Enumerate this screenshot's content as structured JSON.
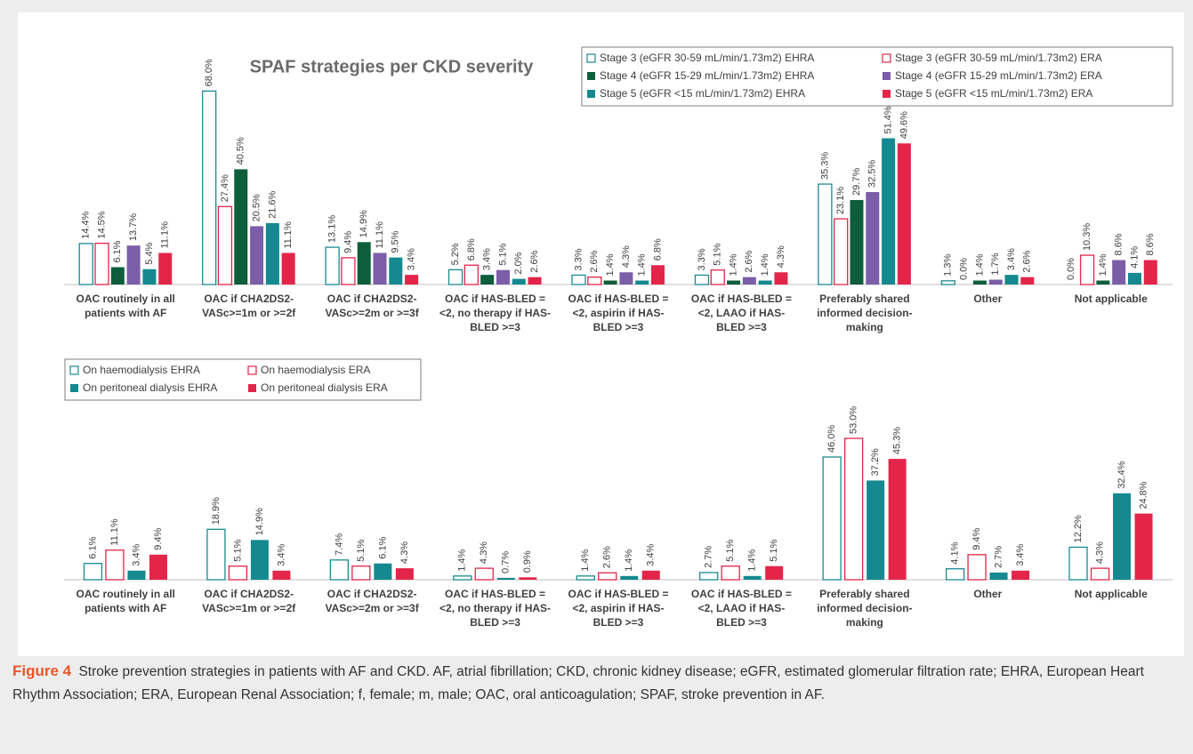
{
  "chart_data": [
    {
      "type": "bar",
      "title": "SPAF strategies per CKD severity",
      "legend": "upper right",
      "categories": [
        "OAC routinely in all patients with AF",
        "OAC if CHA2DS2-VASc>=1m or >=2f",
        "OAC if CHA2DS2-VASc>=2m or >=3f",
        "OAC if HAS-BLED =<2, no therapy if HAS-BLED >=3",
        "OAC if HAS-BLED =<2, aspirin if HAS-BLED >=3",
        "OAC if HAS-BLED =<2, LAAO if HAS-BLED >=3",
        "Preferably shared informed decision-making",
        "Other",
        "Not applicable"
      ],
      "series": [
        {
          "name": "Stage 3 (eGFR 30-59 mL/min/1.73m2) EHRA",
          "color": "#1a8a92",
          "hollow": true,
          "values": [
            14.4,
            68.0,
            13.1,
            5.2,
            3.3,
            3.3,
            35.3,
            1.3,
            0.0
          ],
          "value_labels": [
            "14.4%",
            "68.0%",
            "13.1%",
            "5.2%",
            "3.3%",
            "3.3%",
            "35.3%",
            "1.3%",
            "0.0%"
          ]
        },
        {
          "name": "Stage 3 (eGFR 30-59 mL/min/1.73m2) ERA",
          "color": "#e3254a",
          "hollow": true,
          "values": [
            14.5,
            27.4,
            9.4,
            6.8,
            2.6,
            5.1,
            23.1,
            0.0,
            10.3
          ],
          "value_labels": [
            "14.5%",
            "27.4%",
            "9.4%",
            "6.8%",
            "2.6%",
            "5.1%",
            "23.1%",
            "0.0%",
            "10.3%"
          ]
        },
        {
          "name": "Stage 4 (eGFR 15-29 mL/min/1.73m2) EHRA",
          "color": "#0e5e3c",
          "hollow": false,
          "values": [
            6.1,
            40.5,
            14.9,
            3.4,
            1.4,
            1.4,
            29.7,
            1.4,
            1.4
          ],
          "value_labels": [
            "6.1%",
            "40.5%",
            "14.9%",
            "3.4%",
            "1.4%",
            "1.4%",
            "29.7%",
            "1.4%",
            "1.4%"
          ]
        },
        {
          "name": "Stage 4 (eGFR 15-29 mL/min/1.73m2) ERA",
          "color": "#7b5ea7",
          "hollow": false,
          "values": [
            13.7,
            20.5,
            11.1,
            5.1,
            4.3,
            2.6,
            32.5,
            1.7,
            8.6
          ],
          "value_labels": [
            "13.7%",
            "20.5%",
            "11.1%",
            "5.1%",
            "4.3%",
            "2.6%",
            "32.5%",
            "1.7%",
            "8.6%"
          ]
        },
        {
          "name": "Stage 5 (eGFR <15 mL/min/1.73m2) EHRA",
          "color": "#14898f",
          "hollow": false,
          "values": [
            5.4,
            21.6,
            9.5,
            2.0,
            1.4,
            1.4,
            51.4,
            3.4,
            4.1
          ],
          "value_labels": [
            "5.4%",
            "21.6%",
            "9.5%",
            "2.0%",
            "1.4%",
            "1.4%",
            "51.4%",
            "3.4%",
            "4.1%"
          ]
        },
        {
          "name": "Stage 5 (eGFR <15 mL/min/1.73m2) ERA",
          "color": "#e3254a",
          "hollow": false,
          "values": [
            11.1,
            11.1,
            3.4,
            2.6,
            6.8,
            4.3,
            49.6,
            2.6,
            8.6
          ],
          "value_labels": [
            "11.1%",
            "11.1%",
            "3.4%",
            "2.6%",
            "6.8%",
            "4.3%",
            "49.6%",
            "2.6%",
            "8.6%"
          ]
        }
      ]
    },
    {
      "type": "bar",
      "legend": "upper left",
      "categories": [
        "OAC routinely in all patients with AF",
        "OAC if CHA2DS2-VASc>=1m or >=2f",
        "OAC if CHA2DS2-VASc>=2m or >=3f",
        "OAC if HAS-BLED =<2, no therapy if HAS-BLED >=3",
        "OAC if HAS-BLED =<2, aspirin if HAS-BLED >=3",
        "OAC if HAS-BLED =<2, LAAO if HAS-BLED >=3",
        "Preferably shared informed decision-making",
        "Other",
        "Not applicable"
      ],
      "series": [
        {
          "name": "On haemodialysis EHRA",
          "color": "#1a8a92",
          "hollow": true,
          "values": [
            6.1,
            18.9,
            7.4,
            1.4,
            1.4,
            2.7,
            46.0,
            4.1,
            12.2
          ],
          "value_labels": [
            "6.1%",
            "18.9%",
            "7.4%",
            "1.4%",
            "1.4%",
            "2.7%",
            "46.0%",
            "4.1%",
            "12.2%"
          ]
        },
        {
          "name": "On haemodialysis ERA",
          "color": "#e3254a",
          "hollow": true,
          "values": [
            11.1,
            5.1,
            5.1,
            4.3,
            2.6,
            5.1,
            53.0,
            9.4,
            4.3
          ],
          "value_labels": [
            "11.1%",
            "5.1%",
            "5.1%",
            "4.3%",
            "2.6%",
            "5.1%",
            "53.0%",
            "9.4%",
            "4.3%"
          ]
        },
        {
          "name": "On peritoneal dialysis EHRA",
          "color": "#14898f",
          "hollow": false,
          "values": [
            3.4,
            14.9,
            6.1,
            0.7,
            1.4,
            1.4,
            37.2,
            2.7,
            32.4
          ],
          "value_labels": [
            "3.4%",
            "14.9%",
            "6.1%",
            "0.7%",
            "1.4%",
            "1.4%",
            "37.2%",
            "2.7%",
            "32.4%"
          ]
        },
        {
          "name": "On peritoneal dialysis ERA",
          "color": "#e3254a",
          "hollow": false,
          "values": [
            9.4,
            3.4,
            4.3,
            0.9,
            3.4,
            5.1,
            45.3,
            3.4,
            24.8
          ],
          "value_labels": [
            "9.4%",
            "3.4%",
            "4.3%",
            "0.9%",
            "3.4%",
            "5.1%",
            "45.3%",
            "3.4%",
            "24.8%"
          ]
        }
      ]
    }
  ],
  "caption": {
    "label": "Figure 4",
    "text": "Stroke prevention strategies in patients with AF and CKD. AF, atrial fibrillation; CKD, chronic kidney disease; eGFR, estimated glomerular filtration rate; EHRA, European Heart Rhythm Association; ERA, European Renal Association; f, female; m, male; OAC, oral anticoagulation; SPAF, stroke prevention in AF."
  }
}
